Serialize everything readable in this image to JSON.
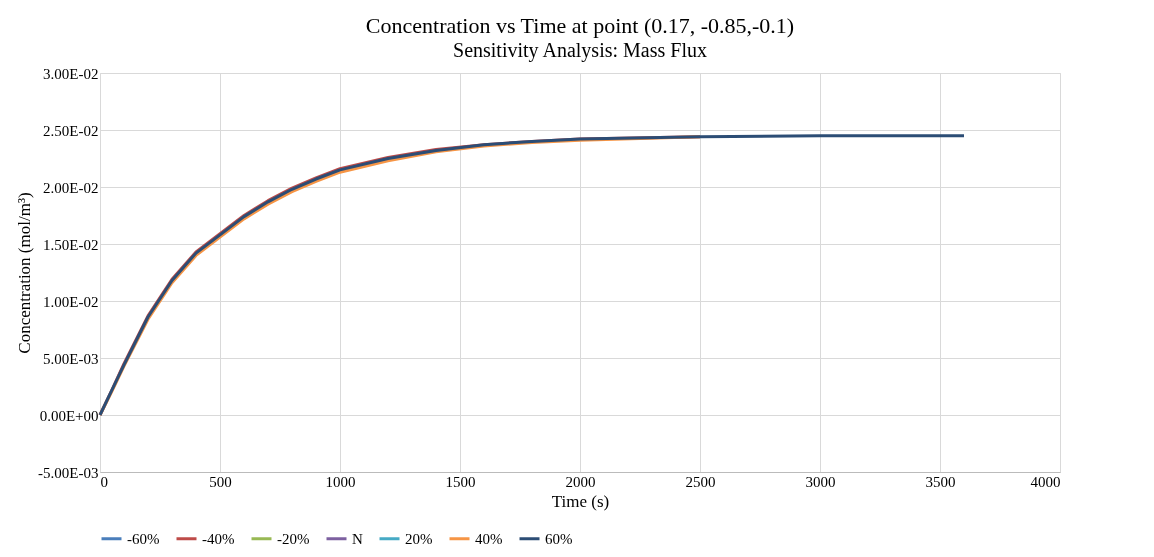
{
  "chart_data": {
    "type": "line",
    "title": "Concentration vs Time at point (0.17, -0.85,-0.1)",
    "subtitle": "Sensitivity Analysis: Mass Flux",
    "xlabel": "Time (s)",
    "ylabel": "Concentration (mol/m³)",
    "x": [
      0,
      50,
      100,
      200,
      300,
      400,
      500,
      600,
      700,
      800,
      900,
      1000,
      1200,
      1400,
      1600,
      1800,
      2000,
      2500,
      3000,
      3600
    ],
    "series": [
      {
        "name": "-60%",
        "color": "#4a7ebb",
        "values": [
          null,
          null,
          null,
          null,
          null,
          null,
          null,
          null,
          null,
          null,
          null,
          null,
          null,
          null,
          null,
          null,
          null,
          null,
          null,
          null
        ]
      },
      {
        "name": "-40%",
        "color": "#be4b48",
        "values": [
          0,
          0.0022,
          0.0045,
          0.0087,
          0.0119,
          0.0143,
          0.0159,
          0.0175,
          0.0188,
          0.0199,
          0.0208,
          0.0216,
          0.0226,
          0.0233,
          0.0237,
          0.024,
          0.0242,
          0.0244,
          null,
          null
        ]
      },
      {
        "name": "-20%",
        "color": "#98b954",
        "values": [
          null,
          null,
          null,
          null,
          null,
          null,
          null,
          null,
          null,
          null,
          null,
          null,
          null,
          null,
          null,
          null,
          null,
          null,
          null,
          null
        ]
      },
      {
        "name": "N",
        "color": "#7d60a0",
        "values": [
          null,
          null,
          null,
          null,
          null,
          null,
          null,
          null,
          null,
          null,
          null,
          null,
          null,
          null,
          null,
          null,
          null,
          null,
          null,
          null
        ]
      },
      {
        "name": "20%",
        "color": "#46aac5",
        "values": [
          null,
          null,
          null,
          null,
          null,
          null,
          null,
          null,
          null,
          null,
          null,
          null,
          null,
          null,
          null,
          null,
          null,
          null,
          null,
          null
        ]
      },
      {
        "name": "40%",
        "color": "#f69545",
        "values": [
          0,
          0.0021,
          0.0043,
          0.0084,
          0.0116,
          0.014,
          0.0156,
          0.0172,
          0.0185,
          0.0196,
          0.0205,
          0.0213,
          0.0223,
          0.0231,
          0.0236,
          0.0239,
          0.0241,
          0.0244,
          null,
          null
        ]
      },
      {
        "name": "60%",
        "color": "#2c4d75",
        "values": [
          0,
          0.0022,
          0.0044,
          0.0086,
          0.0118,
          0.0142,
          0.0158,
          0.0174,
          0.0187,
          0.0198,
          0.0207,
          0.0215,
          0.0225,
          0.0232,
          0.0237,
          0.024,
          0.0242,
          0.0244,
          0.0245,
          0.0245
        ]
      }
    ],
    "xlim": [
      0,
      4000
    ],
    "xticks": [
      0,
      500,
      1000,
      1500,
      2000,
      2500,
      3000,
      3500,
      4000
    ],
    "ylim": [
      -0.005,
      0.03
    ],
    "yticks": [
      {
        "value": -0.005,
        "label": "-5.00E-03"
      },
      {
        "value": 0,
        "label": "0.00E+00"
      },
      {
        "value": 0.005,
        "label": "5.00E-03"
      },
      {
        "value": 0.01,
        "label": "1.00E-02"
      },
      {
        "value": 0.015,
        "label": "1.50E-02"
      },
      {
        "value": 0.02,
        "label": "2.00E-02"
      },
      {
        "value": 0.025,
        "label": "2.50E-02"
      },
      {
        "value": 0.03,
        "label": "3.00E-02"
      }
    ],
    "grid": true,
    "legend": "bottom",
    "line_style": "solid"
  }
}
